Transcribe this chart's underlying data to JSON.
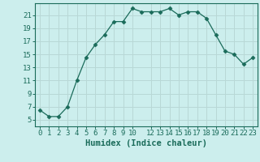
{
  "x": [
    0,
    1,
    2,
    3,
    4,
    5,
    6,
    7,
    8,
    9,
    10,
    11,
    12,
    13,
    14,
    15,
    16,
    17,
    18,
    19,
    20,
    21,
    22,
    23
  ],
  "y": [
    6.5,
    5.5,
    5.5,
    7.0,
    11.0,
    14.5,
    16.5,
    18.0,
    20.0,
    20.0,
    22.0,
    21.5,
    21.5,
    21.5,
    22.0,
    21.0,
    21.5,
    21.5,
    20.5,
    18.0,
    15.5,
    15.0,
    13.5,
    14.5
  ],
  "line_color": "#1a6b5a",
  "marker": "D",
  "marker_size": 2.5,
  "bg_color": "#cceeed",
  "grid_color": "#b8d8d6",
  "xlabel": "Humidex (Indice chaleur)",
  "xlim": [
    -0.5,
    23.5
  ],
  "ylim": [
    4,
    22.8
  ],
  "yticks": [
    5,
    7,
    9,
    11,
    13,
    15,
    17,
    19,
    21
  ],
  "xticks": [
    0,
    1,
    2,
    3,
    4,
    5,
    6,
    7,
    8,
    9,
    10,
    12,
    13,
    14,
    15,
    16,
    17,
    18,
    19,
    20,
    21,
    22,
    23
  ],
  "xtick_labels": [
    "0",
    "1",
    "2",
    "3",
    "4",
    "5",
    "6",
    "7",
    "8",
    "9",
    "10",
    "12",
    "13",
    "14",
    "15",
    "16",
    "17",
    "18",
    "19",
    "20",
    "21",
    "22",
    "23"
  ],
  "tick_fontsize": 6.5,
  "label_fontsize": 7.5
}
